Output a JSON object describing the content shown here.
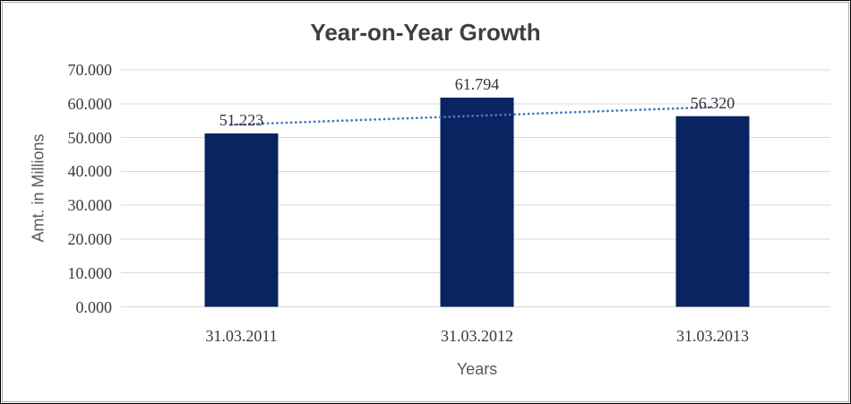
{
  "chart_data": {
    "type": "bar",
    "title": "Year-on-Year Growth",
    "xlabel": "Years",
    "ylabel": "Amt. in Millions",
    "categories": [
      "31.03.2011",
      "31.03.2012",
      "31.03.2013"
    ],
    "values": [
      51.223,
      61.794,
      56.32
    ],
    "data_labels": [
      "51.223",
      "61.794",
      "56.320"
    ],
    "yticks": [
      "0.000",
      "10.000",
      "20.000",
      "30.000",
      "40.000",
      "50.000",
      "60.000",
      "70.000"
    ],
    "ylim": [
      0,
      70
    ],
    "grid": true,
    "legend": "none",
    "bar_color": "#0A2462",
    "trendline": {
      "type": "linear",
      "style": "dotted",
      "color": "#4678BE"
    },
    "gridline_color": "#D9D9D9"
  }
}
